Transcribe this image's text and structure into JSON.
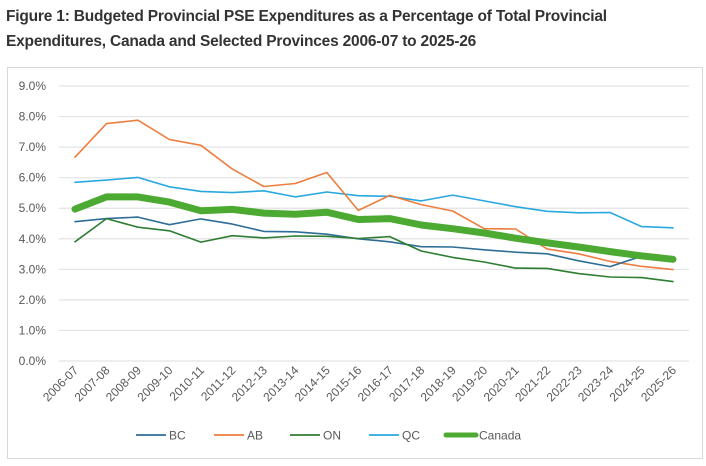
{
  "title_line1": "Figure 1: Budgeted Provincial PSE Expenditures as a Percentage of Total Provincial",
  "title_line2": "Expenditures, Canada and Selected Provinces 2006-07 to 2025-26",
  "chart_data": {
    "type": "line",
    "title": "Figure 1: Budgeted Provincial PSE Expenditures as a Percentage of Total Provincial Expenditures, Canada and Selected Provinces 2006-07 to 2025-26",
    "xlabel": "",
    "ylabel": "",
    "ylim": [
      0,
      9
    ],
    "yticks": [
      0,
      1,
      2,
      3,
      4,
      5,
      6,
      7,
      8,
      9
    ],
    "ytick_labels": [
      "0.0%",
      "1.0%",
      "2.0%",
      "3.0%",
      "4.0%",
      "5.0%",
      "6.0%",
      "7.0%",
      "8.0%",
      "9.0%"
    ],
    "grid": true,
    "legend_position": "bottom",
    "categories": [
      "2006-07",
      "2007-08",
      "2008-09",
      "2009-10",
      "2010-11",
      "2011-12",
      "2012-13",
      "2013-14",
      "2014-15",
      "2015-16",
      "2016-17",
      "2017-18",
      "2018-19",
      "2019-20",
      "2020-21",
      "2021-22",
      "2022-23",
      "2023-24",
      "2024-25",
      "2025-26"
    ],
    "series": [
      {
        "name": "BC",
        "color": "#2e6e96",
        "weight": "thin",
        "values": [
          4.56,
          4.66,
          4.71,
          4.46,
          4.65,
          4.48,
          4.24,
          4.23,
          4.15,
          4.0,
          3.9,
          3.74,
          3.73,
          3.64,
          3.56,
          3.51,
          3.28,
          3.09,
          3.43,
          3.33
        ]
      },
      {
        "name": "AB",
        "color": "#ee7d3e",
        "weight": "thin",
        "values": [
          6.67,
          7.77,
          7.88,
          7.25,
          7.06,
          6.28,
          5.71,
          5.81,
          6.17,
          4.93,
          5.42,
          5.12,
          4.91,
          4.33,
          4.32,
          3.67,
          3.51,
          3.26,
          3.1,
          2.99
        ]
      },
      {
        "name": "ON",
        "color": "#2e7d32",
        "weight": "thin",
        "values": [
          3.9,
          4.66,
          4.38,
          4.26,
          3.89,
          4.1,
          4.03,
          4.09,
          4.08,
          4.01,
          4.07,
          3.6,
          3.39,
          3.24,
          3.04,
          3.03,
          2.86,
          2.75,
          2.73,
          2.6
        ]
      },
      {
        "name": "QC",
        "color": "#29a8e0",
        "weight": "thin",
        "values": [
          5.85,
          5.92,
          6.01,
          5.7,
          5.55,
          5.51,
          5.57,
          5.37,
          5.53,
          5.41,
          5.39,
          5.24,
          5.43,
          5.24,
          5.05,
          4.9,
          4.85,
          4.86,
          4.4,
          4.36
        ]
      },
      {
        "name": "Canada",
        "color": "#4caa33",
        "weight": "thick",
        "values": [
          4.97,
          5.37,
          5.37,
          5.2,
          4.92,
          4.96,
          4.84,
          4.8,
          4.87,
          4.63,
          4.66,
          4.45,
          4.33,
          4.19,
          4.02,
          3.87,
          3.73,
          3.58,
          3.44,
          3.33
        ]
      }
    ]
  }
}
